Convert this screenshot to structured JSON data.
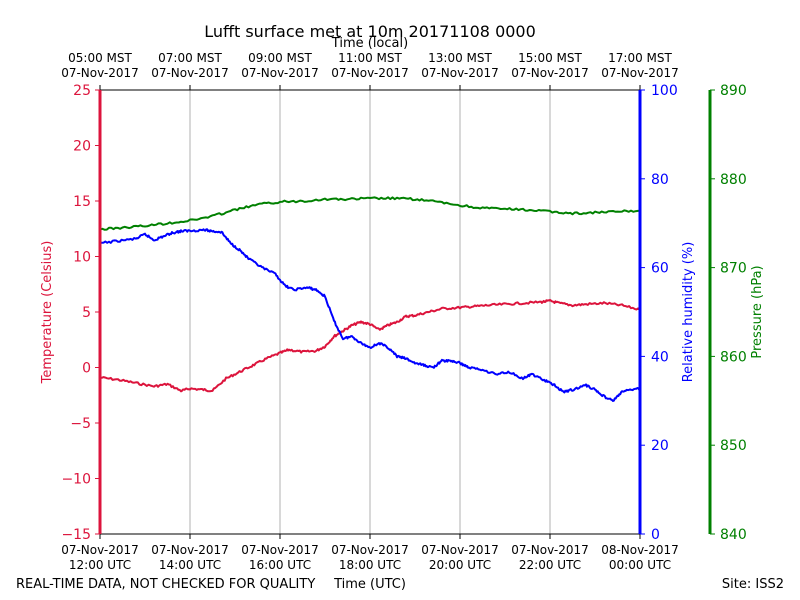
{
  "chart_data": {
    "type": "line",
    "title": "Lufft surface met at 10m 20171108 0000",
    "top_axis_label": "Time (local)",
    "bottom_axis_label": "Time (UTC)",
    "footer_left": "REAL-TIME DATA, NOT CHECKED FOR QUALITY",
    "footer_right": "Site: ISS2",
    "x_range_hours_utc": [
      12,
      24
    ],
    "x_ticks_utc": [
      {
        "hour": 12,
        "line1": "07-Nov-2017",
        "line2": "12:00 UTC"
      },
      {
        "hour": 14,
        "line1": "07-Nov-2017",
        "line2": "14:00 UTC"
      },
      {
        "hour": 16,
        "line1": "07-Nov-2017",
        "line2": "16:00 UTC"
      },
      {
        "hour": 18,
        "line1": "07-Nov-2017",
        "line2": "18:00 UTC"
      },
      {
        "hour": 20,
        "line1": "07-Nov-2017",
        "line2": "20:00 UTC"
      },
      {
        "hour": 22,
        "line1": "07-Nov-2017",
        "line2": "22:00 UTC"
      },
      {
        "hour": 24,
        "line1": "08-Nov-2017",
        "line2": "00:00 UTC"
      }
    ],
    "x_ticks_local": [
      {
        "hour": 12,
        "line1": "05:00 MST",
        "line2": "07-Nov-2017"
      },
      {
        "hour": 14,
        "line1": "07:00 MST",
        "line2": "07-Nov-2017"
      },
      {
        "hour": 16,
        "line1": "09:00 MST",
        "line2": "07-Nov-2017"
      },
      {
        "hour": 18,
        "line1": "11:00 MST",
        "line2": "07-Nov-2017"
      },
      {
        "hour": 20,
        "line1": "13:00 MST",
        "line2": "07-Nov-2017"
      },
      {
        "hour": 22,
        "line1": "15:00 MST",
        "line2": "07-Nov-2017"
      },
      {
        "hour": 24,
        "line1": "17:00 MST",
        "line2": "07-Nov-2017"
      }
    ],
    "grid_x": true,
    "axes": {
      "temperature": {
        "label": "Temperature (Celsius)",
        "ylim": [
          -15,
          25
        ],
        "ticks": [
          -15,
          -10,
          -5,
          0,
          5,
          10,
          15,
          20,
          25
        ],
        "tick_labels": [
          "−15",
          "−10",
          "−5",
          "0",
          "5",
          "10",
          "15",
          "20",
          "25"
        ],
        "color": "#dc143c"
      },
      "humidity": {
        "label": "Relative humidity (%)",
        "ylim": [
          0,
          100
        ],
        "ticks": [
          0,
          20,
          40,
          60,
          80,
          100
        ],
        "tick_labels": [
          "0",
          "20",
          "40",
          "60",
          "80",
          "100"
        ],
        "color": "#0000ff"
      },
      "pressure": {
        "label": "Pressure (hPa)",
        "ylim": [
          840,
          890
        ],
        "ticks": [
          840,
          850,
          860,
          870,
          880,
          890
        ],
        "tick_labels": [
          "840",
          "850",
          "860",
          "870",
          "880",
          "890"
        ],
        "color": "#008000"
      }
    },
    "series": [
      {
        "name": "Temperature",
        "axis": "temperature",
        "color": "#dc143c",
        "x": [
          12.0,
          12.4,
          12.8,
          13.2,
          13.5,
          13.8,
          14.0,
          14.3,
          14.5,
          14.8,
          15.1,
          15.4,
          15.7,
          16.0,
          16.2,
          16.5,
          16.8,
          17.0,
          17.2,
          17.4,
          17.6,
          17.8,
          18.0,
          18.2,
          18.4,
          18.6,
          18.8,
          19.0,
          19.3,
          19.6,
          20.0,
          20.3,
          20.6,
          21.0,
          21.4,
          21.8,
          22.0,
          22.2,
          22.5,
          22.8,
          23.2,
          23.6,
          24.0
        ],
        "y": [
          -0.9,
          -1.1,
          -1.4,
          -1.7,
          -1.5,
          -2.1,
          -1.9,
          -2.0,
          -2.1,
          -1.0,
          -0.4,
          0.2,
          0.8,
          1.3,
          1.6,
          1.4,
          1.5,
          1.9,
          2.8,
          3.3,
          3.8,
          4.1,
          3.9,
          3.4,
          3.8,
          4.1,
          4.6,
          4.7,
          5.0,
          5.3,
          5.4,
          5.5,
          5.6,
          5.7,
          5.8,
          5.9,
          6.0,
          5.8,
          5.6,
          5.7,
          5.8,
          5.6,
          5.2
        ]
      },
      {
        "name": "Relative humidity",
        "axis": "humidity",
        "color": "#0000ff",
        "x": [
          12.0,
          12.4,
          12.8,
          13.0,
          13.2,
          13.4,
          13.6,
          13.8,
          14.0,
          14.3,
          14.5,
          14.7,
          14.9,
          15.1,
          15.3,
          15.6,
          15.9,
          16.1,
          16.3,
          16.6,
          16.8,
          17.0,
          17.2,
          17.4,
          17.6,
          17.8,
          18.0,
          18.2,
          18.4,
          18.6,
          18.8,
          19.0,
          19.2,
          19.4,
          19.6,
          19.8,
          20.0,
          20.2,
          20.5,
          20.8,
          21.1,
          21.4,
          21.6,
          21.9,
          22.1,
          22.3,
          22.5,
          22.8,
          23.0,
          23.2,
          23.4,
          23.6,
          23.8,
          24.0
        ],
        "y": [
          65.5,
          66.0,
          66.5,
          67.5,
          66.2,
          67.0,
          67.8,
          68.2,
          68.3,
          68.5,
          68.2,
          68.0,
          65.5,
          64.0,
          62.0,
          60.0,
          58.5,
          56.0,
          55.0,
          55.5,
          55.0,
          53.5,
          48.0,
          44.0,
          44.5,
          43.0,
          42.0,
          43.0,
          42.0,
          40.0,
          39.5,
          38.5,
          38.0,
          37.5,
          39.0,
          39.0,
          38.5,
          37.5,
          37.0,
          36.0,
          36.5,
          35.0,
          36.0,
          34.5,
          33.5,
          32.0,
          32.5,
          33.5,
          32.5,
          31.0,
          30.0,
          32.0,
          32.5,
          32.8
        ]
      },
      {
        "name": "Pressure",
        "axis": "pressure",
        "color": "#008000",
        "x": [
          12.0,
          12.5,
          13.0,
          13.5,
          14.0,
          14.5,
          15.0,
          15.5,
          16.0,
          16.5,
          17.0,
          17.5,
          18.0,
          18.5,
          19.0,
          19.5,
          20.0,
          20.5,
          21.0,
          21.5,
          22.0,
          22.5,
          23.0,
          23.5,
          24.0
        ],
        "y": [
          874.3,
          874.5,
          874.7,
          875.0,
          875.3,
          875.8,
          876.5,
          877.1,
          877.4,
          877.5,
          877.7,
          877.7,
          877.8,
          877.8,
          877.7,
          877.4,
          877.0,
          876.7,
          876.6,
          876.5,
          876.3,
          876.1,
          876.2,
          876.3,
          876.4
        ]
      }
    ]
  }
}
